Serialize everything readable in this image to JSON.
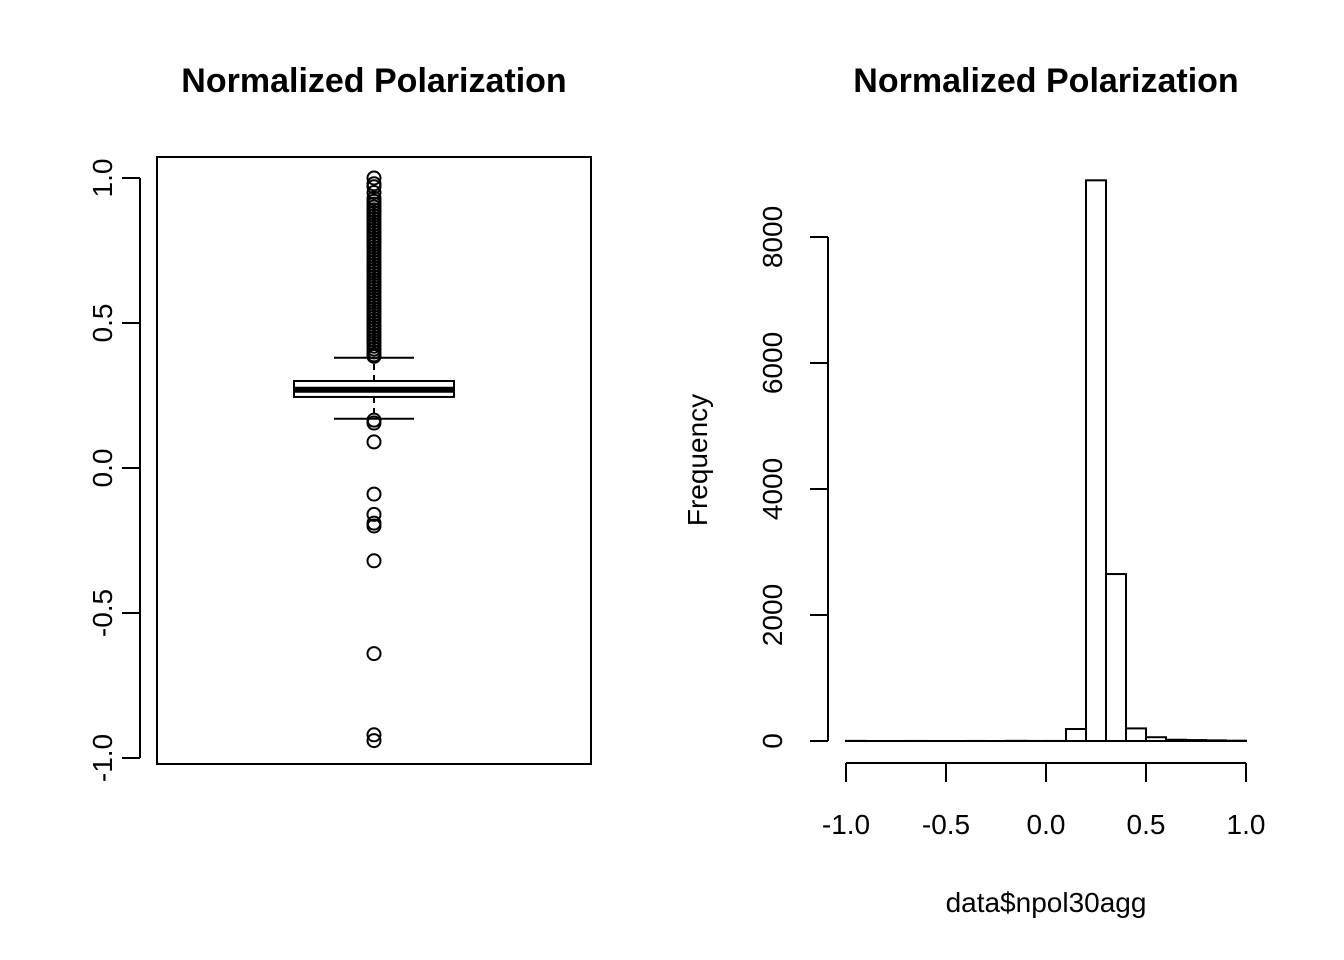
{
  "chart_data": [
    {
      "type": "box",
      "title": "Normalized Polarization",
      "xlabel": "",
      "ylabel": "",
      "ylim": [
        -1.0,
        1.0
      ],
      "y_ticks": [
        -1.0,
        -0.5,
        0.0,
        0.5,
        1.0
      ],
      "y_tick_labels": [
        "-1.0",
        "-0.5",
        "0.0",
        "0.5",
        "1.0"
      ],
      "box": {
        "lower_whisker": 0.17,
        "q1": 0.245,
        "median": 0.27,
        "q3": 0.3,
        "upper_whisker": 0.38
      },
      "outliers": [
        1.0,
        0.98,
        0.97,
        0.95,
        0.93,
        0.92,
        0.91,
        0.9,
        0.89,
        0.88,
        0.87,
        0.86,
        0.85,
        0.84,
        0.83,
        0.82,
        0.81,
        0.8,
        0.79,
        0.78,
        0.77,
        0.76,
        0.75,
        0.74,
        0.73,
        0.72,
        0.71,
        0.7,
        0.69,
        0.68,
        0.67,
        0.66,
        0.65,
        0.64,
        0.63,
        0.62,
        0.61,
        0.6,
        0.59,
        0.58,
        0.57,
        0.56,
        0.55,
        0.54,
        0.53,
        0.52,
        0.51,
        0.5,
        0.49,
        0.48,
        0.47,
        0.46,
        0.45,
        0.44,
        0.43,
        0.42,
        0.41,
        0.4,
        0.39,
        0.385,
        0.165,
        0.155,
        0.09,
        -0.09,
        -0.16,
        -0.19,
        -0.2,
        -0.32,
        -0.64,
        -0.92,
        -0.94
      ]
    },
    {
      "type": "histogram",
      "title": "Normalized Polarization",
      "xlabel": "data$npol30agg",
      "ylabel": "Frequency",
      "xlim": [
        -1.0,
        1.0
      ],
      "ylim": [
        0,
        8900
      ],
      "x_ticks": [
        -1.0,
        -0.5,
        0.0,
        0.5,
        1.0
      ],
      "x_tick_labels": [
        "-1.0",
        "-0.5",
        "0.0",
        "0.5",
        "1.0"
      ],
      "y_ticks": [
        0,
        2000,
        4000,
        6000,
        8000
      ],
      "y_tick_labels": [
        "0",
        "2000",
        "4000",
        "6000",
        "8000"
      ],
      "bins": [
        {
          "x0": -1.0,
          "x1": -0.9,
          "count": 2
        },
        {
          "x0": -0.9,
          "x1": -0.8,
          "count": 0
        },
        {
          "x0": -0.8,
          "x1": -0.7,
          "count": 0
        },
        {
          "x0": -0.7,
          "x1": -0.6,
          "count": 1
        },
        {
          "x0": -0.6,
          "x1": -0.5,
          "count": 0
        },
        {
          "x0": -0.5,
          "x1": -0.4,
          "count": 0
        },
        {
          "x0": -0.4,
          "x1": -0.3,
          "count": 1
        },
        {
          "x0": -0.3,
          "x1": -0.2,
          "count": 0
        },
        {
          "x0": -0.2,
          "x1": -0.1,
          "count": 3
        },
        {
          "x0": -0.1,
          "x1": 0.0,
          "count": 1
        },
        {
          "x0": 0.0,
          "x1": 0.1,
          "count": 1
        },
        {
          "x0": 0.1,
          "x1": 0.2,
          "count": 190
        },
        {
          "x0": 0.2,
          "x1": 0.3,
          "count": 8900
        },
        {
          "x0": 0.3,
          "x1": 0.4,
          "count": 2650
        },
        {
          "x0": 0.4,
          "x1": 0.5,
          "count": 200
        },
        {
          "x0": 0.5,
          "x1": 0.6,
          "count": 60
        },
        {
          "x0": 0.6,
          "x1": 0.7,
          "count": 20
        },
        {
          "x0": 0.7,
          "x1": 0.8,
          "count": 15
        },
        {
          "x0": 0.8,
          "x1": 0.9,
          "count": 10
        },
        {
          "x0": 0.9,
          "x1": 1.0,
          "count": 5
        }
      ]
    }
  ]
}
